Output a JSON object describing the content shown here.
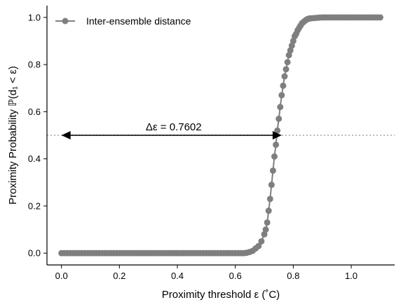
{
  "chart_data": {
    "type": "line",
    "xlabel": "Proximity threshold ε (˚C)",
    "ylabel": "Proximity Probability ℙ(d₁ < ε)",
    "xlim": [
      -0.05,
      1.15
    ],
    "ylim": [
      -0.05,
      1.05
    ],
    "x_ticks": [
      "0.0",
      "0.2",
      "0.4",
      "0.6",
      "0.8",
      "1.0"
    ],
    "y_ticks": [
      "0.0",
      "0.2",
      "0.4",
      "0.6",
      "0.8",
      "1.0"
    ],
    "grid": false,
    "legend_position": "top-left",
    "reference_line": {
      "y": 0.5,
      "style": "dotted",
      "color": "#bbbbbb"
    },
    "annotation": {
      "text": "Δε =  0.7602",
      "arrow_from_x": 0.0,
      "arrow_to_x": 0.7602,
      "y": 0.5
    },
    "series": [
      {
        "name": "Inter-ensemble distance",
        "color": "#7f7f7f",
        "x": [
          0.0,
          0.01,
          0.02,
          0.03,
          0.04,
          0.05,
          0.06,
          0.07,
          0.08,
          0.09,
          0.1,
          0.11,
          0.12,
          0.13,
          0.14,
          0.15,
          0.16,
          0.17,
          0.18,
          0.19,
          0.2,
          0.21,
          0.22,
          0.23,
          0.24,
          0.25,
          0.26,
          0.27,
          0.28,
          0.29,
          0.3,
          0.31,
          0.32,
          0.33,
          0.34,
          0.35,
          0.36,
          0.37,
          0.38,
          0.39,
          0.4,
          0.41,
          0.42,
          0.43,
          0.44,
          0.45,
          0.46,
          0.47,
          0.48,
          0.49,
          0.5,
          0.51,
          0.52,
          0.53,
          0.54,
          0.55,
          0.56,
          0.57,
          0.58,
          0.59,
          0.6,
          0.61,
          0.62,
          0.63,
          0.64,
          0.65,
          0.66,
          0.67,
          0.68,
          0.69,
          0.7,
          0.705,
          0.71,
          0.715,
          0.72,
          0.725,
          0.73,
          0.735,
          0.74,
          0.745,
          0.75,
          0.755,
          0.76,
          0.765,
          0.77,
          0.775,
          0.78,
          0.785,
          0.79,
          0.795,
          0.8,
          0.805,
          0.81,
          0.815,
          0.82,
          0.825,
          0.83,
          0.835,
          0.84,
          0.845,
          0.85,
          0.855,
          0.86,
          0.87,
          0.88,
          0.89,
          0.9,
          0.91,
          0.92,
          0.93,
          0.94,
          0.95,
          0.96,
          0.97,
          0.98,
          0.99,
          1.0,
          1.01,
          1.02,
          1.03,
          1.04,
          1.05,
          1.06,
          1.07,
          1.08,
          1.09,
          1.1
        ],
        "y": [
          0.0,
          0.0,
          0.0,
          0.0,
          0.0,
          0.0,
          0.0,
          0.0,
          0.0,
          0.0,
          0.0,
          0.0,
          0.0,
          0.0,
          0.0,
          0.0,
          0.0,
          0.0,
          0.0,
          0.0,
          0.0,
          0.0,
          0.0,
          0.0,
          0.0,
          0.0,
          0.0,
          0.0,
          0.0,
          0.0,
          0.0,
          0.0,
          0.0,
          0.0,
          0.0,
          0.0,
          0.0,
          0.0,
          0.0,
          0.0,
          0.0,
          0.0,
          0.0,
          0.0,
          0.0,
          0.0,
          0.0,
          0.0,
          0.0,
          0.0,
          0.0,
          0.0,
          0.0,
          0.0,
          0.0,
          0.0,
          0.0,
          0.0,
          0.0,
          0.0,
          0.0,
          0.0,
          0.0,
          0.0,
          0.002,
          0.005,
          0.01,
          0.02,
          0.03,
          0.05,
          0.08,
          0.1,
          0.13,
          0.18,
          0.23,
          0.29,
          0.35,
          0.41,
          0.46,
          0.52,
          0.57,
          0.62,
          0.67,
          0.71,
          0.75,
          0.78,
          0.81,
          0.84,
          0.86,
          0.88,
          0.9,
          0.92,
          0.93,
          0.945,
          0.955,
          0.965,
          0.975,
          0.98,
          0.985,
          0.99,
          0.993,
          0.995,
          0.996,
          0.997,
          0.998,
          0.999,
          1.0,
          1.0,
          1.0,
          1.0,
          1.0,
          1.0,
          1.0,
          1.0,
          1.0,
          1.0,
          1.0,
          1.0,
          1.0,
          1.0,
          1.0,
          1.0,
          1.0,
          1.0,
          1.0,
          1.0,
          1.0
        ]
      }
    ]
  }
}
